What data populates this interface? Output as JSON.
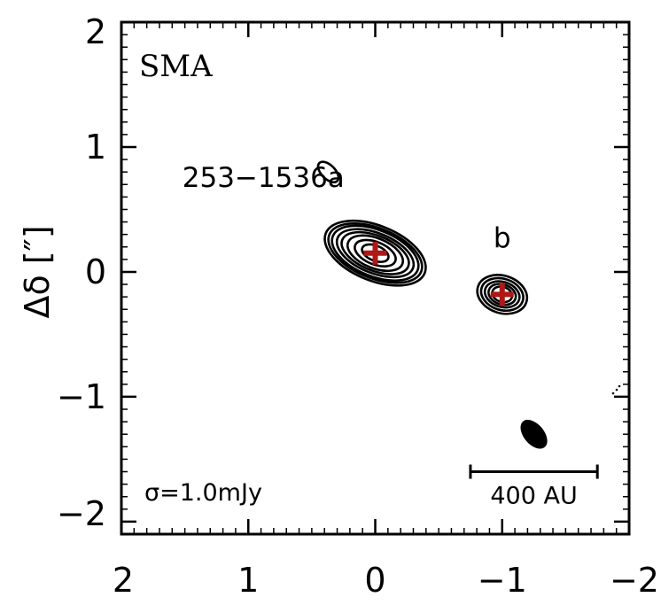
{
  "chart_data": {
    "type": "contour",
    "panel_label": "SMA",
    "xlabel": "",
    "ylabel": "Δδ [″]",
    "xlim": [
      2,
      -2
    ],
    "ylim": [
      -2.1,
      2.0
    ],
    "x_ticks": [
      2,
      1,
      0,
      -1,
      -2
    ],
    "x_tick_labels": [
      "2",
      "1",
      "0",
      "−1",
      "−2"
    ],
    "y_ticks": [
      -2,
      -1,
      0,
      1,
      2
    ],
    "y_tick_labels": [
      "−2",
      "−1",
      "0",
      "1",
      "2"
    ],
    "sources": [
      {
        "label": "253−1536a",
        "x": 0.0,
        "y": 0.15,
        "label_x": 1.52,
        "label_y": 0.68
      },
      {
        "label": "b",
        "x": -1.0,
        "y": -0.18,
        "label_x": -1.0,
        "label_y": 0.2
      }
    ],
    "contours": [
      {
        "group": "a",
        "cx": 0.0,
        "cy": 0.15,
        "angle": 22,
        "radii": [
          [
            0.42,
            0.22
          ],
          [
            0.39,
            0.2
          ],
          [
            0.36,
            0.185
          ],
          [
            0.32,
            0.16
          ],
          [
            0.28,
            0.14
          ],
          [
            0.23,
            0.12
          ],
          [
            0.17,
            0.09
          ],
          [
            0.11,
            0.06
          ]
        ]
      },
      {
        "group": "b",
        "cx": -1.0,
        "cy": -0.18,
        "angle": 18,
        "radii": [
          [
            0.2,
            0.15
          ],
          [
            0.17,
            0.125
          ],
          [
            0.14,
            0.1
          ],
          [
            0.11,
            0.08
          ],
          [
            0.08,
            0.06
          ]
        ]
      },
      {
        "group": "noise",
        "cx": 0.37,
        "cy": 0.8,
        "angle": 45,
        "radii": [
          [
            0.1,
            0.055
          ]
        ]
      }
    ],
    "beam": {
      "x": -1.25,
      "y": -1.3,
      "major": 0.27,
      "minor": 0.16,
      "angle": 40
    },
    "scale_bar": {
      "label": "400 AU",
      "x_start": -0.75,
      "x_end": -1.75,
      "y": -1.6
    },
    "noise_label": "σ=1.0mJy",
    "marker_color": "#b01717"
  }
}
